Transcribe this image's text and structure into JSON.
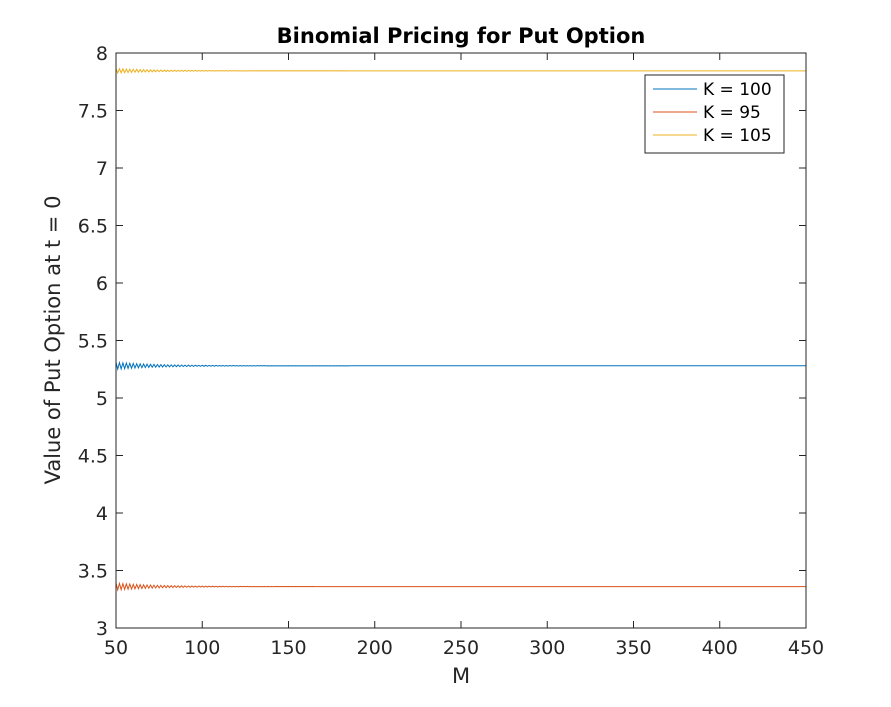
{
  "chart_data": {
    "type": "line",
    "title": "Binomial Pricing for Put Option",
    "xlabel": "M",
    "ylabel": "Value of Put Option at t = 0",
    "xlim": [
      50,
      450
    ],
    "ylim": [
      3,
      8
    ],
    "xticks": [
      50,
      100,
      150,
      200,
      250,
      300,
      350,
      400,
      450
    ],
    "yticks": [
      3,
      3.5,
      4,
      4.5,
      5,
      5.5,
      6,
      6.5,
      7,
      7.5,
      8
    ],
    "xtick_labels": [
      "50",
      "100",
      "150",
      "200",
      "250",
      "300",
      "350",
      "400",
      "450"
    ],
    "ytick_labels": [
      "3",
      "3.5",
      "4",
      "4.5",
      "5",
      "5.5",
      "6",
      "6.5",
      "7",
      "7.5",
      "8"
    ],
    "grid": false,
    "legend_position": "top-right",
    "series": [
      {
        "name": "K = 100",
        "color": "#0072BD",
        "x_start": 50,
        "x_end": 450,
        "x_step": 1,
        "converged_value": 5.28,
        "initial_oscillation": 0.03,
        "decay": 25
      },
      {
        "name": "K = 95",
        "color": "#D95319",
        "x_start": 50,
        "x_end": 450,
        "x_step": 1,
        "converged_value": 3.36,
        "initial_oscillation": 0.03,
        "decay": 25
      },
      {
        "name": "K = 105",
        "color": "#EDB120",
        "x_start": 50,
        "x_end": 450,
        "x_step": 1,
        "converged_value": 7.845,
        "initial_oscillation": 0.02,
        "decay": 25
      }
    ]
  }
}
